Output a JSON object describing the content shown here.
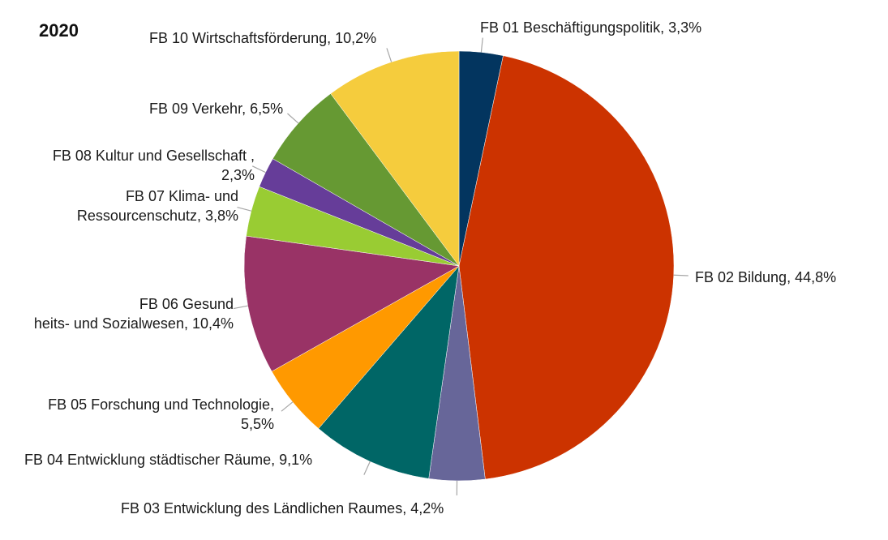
{
  "chart_data": {
    "type": "pie",
    "title": "2020",
    "legend": "none",
    "slices": [
      {
        "label": "FB 01 Beschäftigungspolitik, 3,3%",
        "value": 3.3,
        "color": "#03355f"
      },
      {
        "label": "FB 02 Bildung, 44,8%",
        "value": 44.8,
        "color": "#cc3300"
      },
      {
        "label": "FB 03 Entwicklung des Ländlichen Raumes, 4,2%",
        "value": 4.2,
        "color": "#676699"
      },
      {
        "label": "FB 04 Entwicklung städtischer Räume, 9,1%",
        "value": 9.1,
        "color": "#006666"
      },
      {
        "label": "FB 05 Forschung und Technologie, 5,5%",
        "value": 5.5,
        "color": "#ff9900"
      },
      {
        "label": "FB 06 Gesundheits- und Sozialwesen, 10,4%",
        "value": 10.4,
        "color": "#993366"
      },
      {
        "label": "FB 07 Klima- und Ressourcenschutz, 3,8%",
        "value": 3.8,
        "color": "#99cc33"
      },
      {
        "label": "FB 08 Kultur und Gesellschaft , 2,3%",
        "value": 2.3,
        "color": "#663d99"
      },
      {
        "label": "FB 09 Verkehr, 6,5%",
        "value": 6.5,
        "color": "#669933"
      },
      {
        "label": "FB 10 Wirtschaftsförderung, 10,2%",
        "value": 10.2,
        "color": "#f5cc3d"
      }
    ]
  }
}
